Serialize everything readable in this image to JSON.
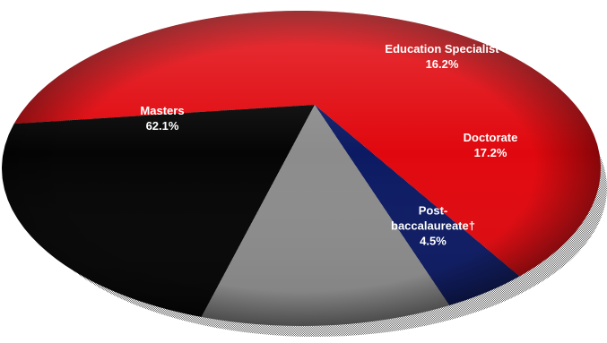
{
  "chart_data": {
    "type": "pie",
    "title": "",
    "legend": "none",
    "series": [
      {
        "values": [
          62.1,
          16.2,
          17.2,
          4.5
        ],
        "categories": [
          "Masters",
          "Education Specialist",
          "Doctorate",
          "Post-baccalaureate†"
        ],
        "labels": [
          {
            "lines": [
              "Masters",
              "62.1%"
            ]
          },
          {
            "lines": [
              "Education Specialist",
              "16.2%"
            ]
          },
          {
            "lines": [
              "Doctorate",
              "17.2%"
            ]
          },
          {
            "lines": [
              "Post-",
              "baccalaureate†",
              "4.5%"
            ]
          }
        ],
        "colors": [
          "#e0080e",
          "#050505",
          "#8c8c8c",
          "#0c1a63"
        ]
      }
    ]
  }
}
